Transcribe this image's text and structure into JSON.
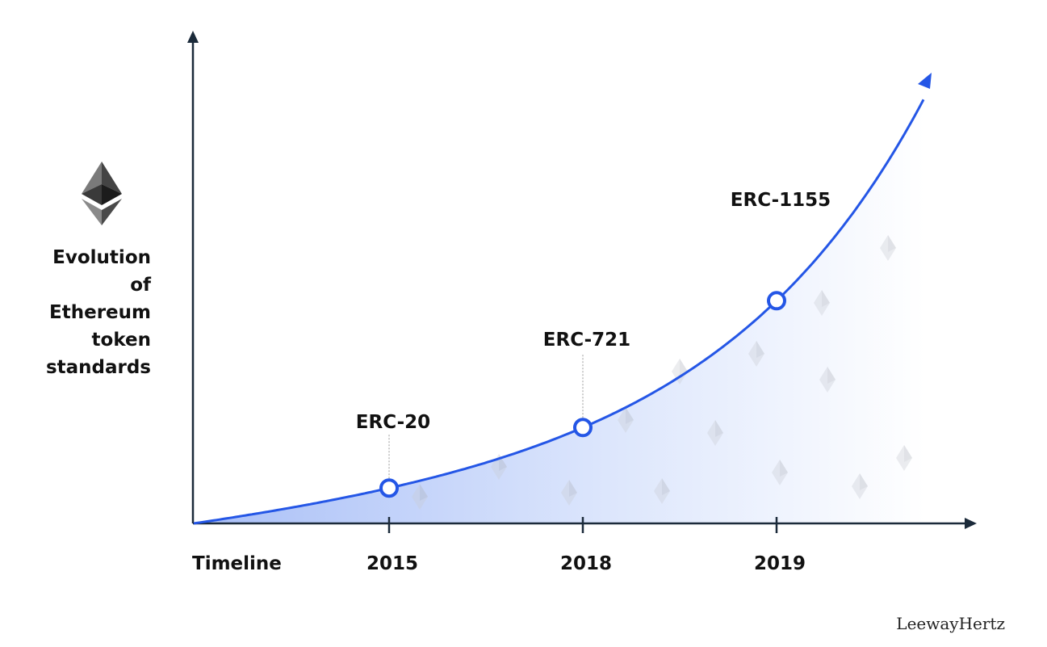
{
  "chart_data": {
    "type": "line",
    "title": "Evolution of Ethereum token standards",
    "ylabel_lines": [
      "Evolution",
      "of",
      "Ethereum",
      "token",
      "standards"
    ],
    "xlabel": "Timeline",
    "milestones": [
      {
        "year": "2015",
        "standard": "ERC-20",
        "level": 1
      },
      {
        "year": "2018",
        "standard": "ERC-721",
        "level": 2
      },
      {
        "year": "2019",
        "standard": "ERC-1155",
        "level": 3
      }
    ],
    "colors": {
      "curve": "#2456e6",
      "axis": "#1b2a3a",
      "fill_start": "#a9bff7"
    }
  },
  "brand": "LeewayHertz"
}
